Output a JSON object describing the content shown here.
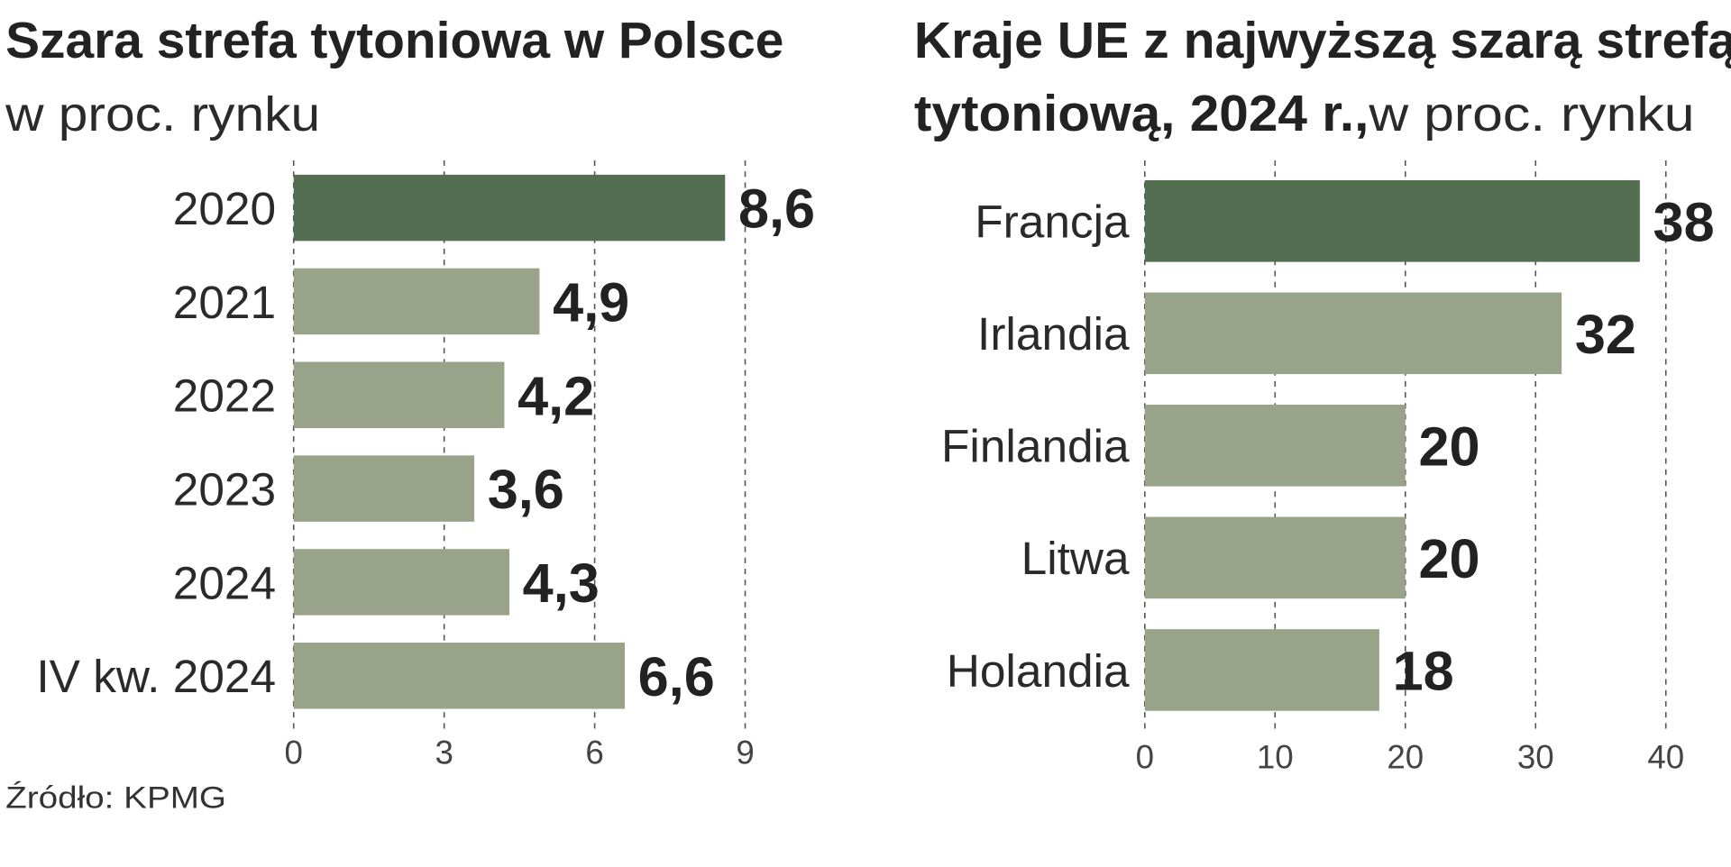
{
  "chart_data": [
    {
      "type": "bar",
      "orientation": "horizontal",
      "title": "Szara strefa tytoniowa w Polsce",
      "subtitle": "w proc. rynku",
      "categories": [
        "2020",
        "2021",
        "2022",
        "2023",
        "2024",
        "IV kw. 2024"
      ],
      "values": [
        8.6,
        4.9,
        4.2,
        3.6,
        4.3,
        6.6
      ],
      "value_labels": [
        "8,6",
        "4,9",
        "4,2",
        "3,6",
        "4,3",
        "6,6"
      ],
      "highlight_index": 0,
      "xlim": [
        0,
        9
      ],
      "xticks": [
        0,
        3,
        6,
        9
      ],
      "grid": true,
      "source": "Źródło: KPMG"
    },
    {
      "type": "bar",
      "orientation": "horizontal",
      "title": "Kraje UE z najwyższą szarą strefą",
      "title_line2_bold": "tytoniową, 2024 r.,",
      "subtitle": " w proc. rynku",
      "categories": [
        "Francja",
        "Irlandia",
        "Finlandia",
        "Litwa",
        "Holandia"
      ],
      "values": [
        38,
        32,
        20,
        20,
        18
      ],
      "value_labels": [
        "38",
        "32",
        "20",
        "20",
        "18"
      ],
      "highlight_index": 0,
      "xlim": [
        0,
        40
      ],
      "xticks": [
        0,
        10,
        20,
        30,
        40
      ],
      "grid": true
    }
  ],
  "colors": {
    "highlight": "#536e50",
    "bar": "#98a38a",
    "grid": "#555555"
  }
}
